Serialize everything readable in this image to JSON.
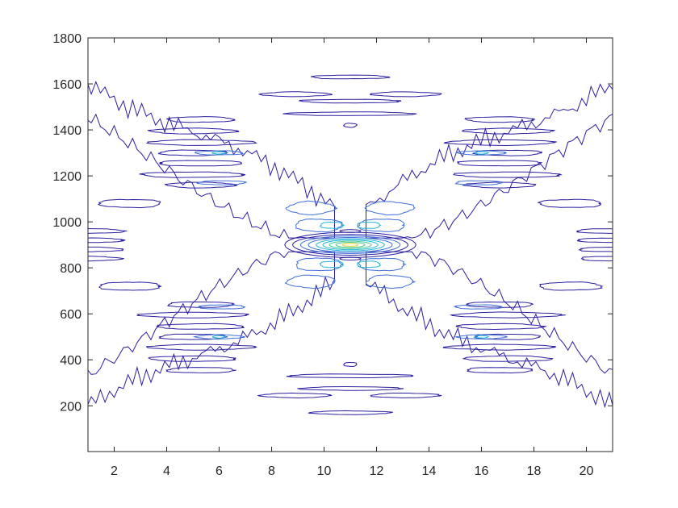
{
  "chart_data": {
    "type": "contour",
    "title": "",
    "xlabel": "",
    "ylabel": "",
    "xlim": [
      1,
      21
    ],
    "ylim": [
      1,
      1800
    ],
    "grid": false,
    "legend": "none",
    "x_ticks": [
      "2",
      "4",
      "6",
      "8",
      "10",
      "12",
      "14",
      "16",
      "18",
      "20"
    ],
    "y_ticks": [
      "200",
      "400",
      "600",
      "800",
      "1000",
      "1200",
      "1400",
      "1600",
      "1800"
    ],
    "peak": {
      "x": 11,
      "y": 900,
      "note_color": "#e8d23a"
    },
    "colors": {
      "lowest": "#2a1fa0",
      "low": "#3f6fd8",
      "mid": "#25b5d6",
      "high": "#49c98f",
      "highest": "#e8d23a",
      "axes": "#262626"
    },
    "level_curves": [
      {
        "level": "outer",
        "x": [
          1,
          2,
          3,
          4,
          5,
          6,
          7,
          8,
          9,
          10,
          11,
          12,
          13,
          14,
          15,
          16,
          17,
          18,
          19,
          20,
          21
        ],
        "upper_lobe_y_range": [
          960,
          1630
        ],
        "lower_lobe_y_range": [
          170,
          840
        ]
      }
    ]
  }
}
